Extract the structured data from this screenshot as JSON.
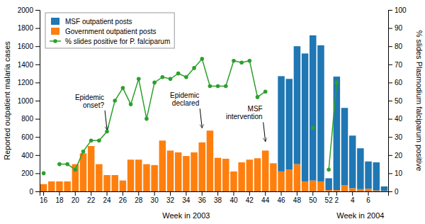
{
  "chart_data": {
    "type": "bar",
    "stacked": true,
    "categories": [
      16,
      null,
      18,
      null,
      20,
      null,
      22,
      null,
      24,
      null,
      26,
      null,
      28,
      null,
      30,
      null,
      32,
      null,
      34,
      null,
      36,
      null,
      38,
      null,
      40,
      null,
      42,
      null,
      44,
      null,
      46,
      null,
      48,
      null,
      50,
      null,
      52,
      2,
      null,
      4,
      null,
      6,
      null,
      null
    ],
    "x_groups": [
      {
        "label": "Week in 2003",
        "count": 37
      },
      {
        "label": "Week in 2004",
        "count": 7
      }
    ],
    "series": [
      {
        "name": "MSF outpatient posts",
        "type": "bar",
        "values": [
          0,
          0,
          0,
          0,
          0,
          0,
          0,
          0,
          0,
          0,
          0,
          0,
          0,
          0,
          0,
          0,
          0,
          0,
          0,
          0,
          0,
          0,
          0,
          0,
          0,
          0,
          0,
          0,
          0,
          0,
          1050,
          1000,
          1300,
          1410,
          1600,
          1500,
          130,
          1250,
          850,
          580,
          450,
          300,
          310,
          50
        ]
      },
      {
        "name": "Government outpatient posts",
        "type": "bar",
        "values": [
          80,
          110,
          110,
          110,
          300,
          420,
          500,
          300,
          180,
          180,
          120,
          350,
          350,
          300,
          290,
          560,
          450,
          430,
          390,
          430,
          540,
          670,
          370,
          360,
          220,
          320,
          350,
          365,
          450,
          310,
          220,
          240,
          300,
          110,
          120,
          110,
          15,
          15,
          70,
          35,
          25,
          30,
          10,
          5
        ]
      },
      {
        "name": "% slides positive for P. falciparum",
        "type": "line",
        "marker": "circle",
        "axis": "y2",
        "values": [
          10,
          null,
          15,
          15,
          12,
          22,
          28,
          28,
          33,
          50,
          57,
          48,
          62,
          40,
          60,
          63,
          62,
          65,
          63,
          68,
          73,
          58,
          58,
          58,
          72,
          71,
          72,
          52,
          55,
          null,
          null,
          null,
          null,
          null,
          35,
          null,
          12,
          60,
          null,
          null,
          null,
          null,
          null,
          null
        ]
      }
    ],
    "ylabel": "Reported outpatient malaria cases",
    "y2label": "% slides Plasmodium falciparum positive",
    "ylim": [
      0,
      2000
    ],
    "yticks": [
      0,
      200,
      400,
      600,
      800,
      1000,
      1200,
      1400,
      1600,
      1800,
      2000
    ],
    "y2lim": [
      0,
      100
    ],
    "y2ticks": [
      0,
      10,
      20,
      30,
      40,
      50,
      60,
      70,
      80,
      90,
      100
    ],
    "legend": "upper left",
    "annotations": [
      {
        "text": "Epidemic\nonset?",
        "x": 24,
        "y": 650
      },
      {
        "text": "Epidemic\ndeclared",
        "x": 36,
        "y": 670
      },
      {
        "text": "MSF\nintervention",
        "x": 44,
        "y": 520
      }
    ]
  }
}
